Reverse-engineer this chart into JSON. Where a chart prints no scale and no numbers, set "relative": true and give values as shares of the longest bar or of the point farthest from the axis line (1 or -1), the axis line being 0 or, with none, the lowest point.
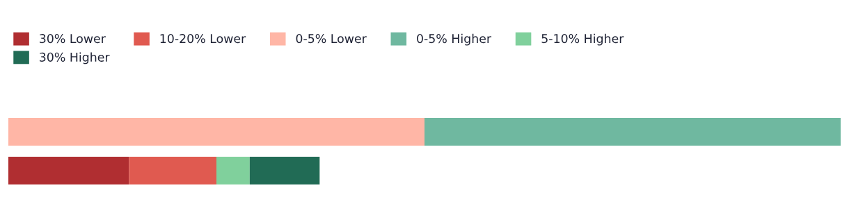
{
  "chart_data": {
    "type": "bar",
    "orientation": "horizontal",
    "stacked": true,
    "relative": true,
    "legend": "top left",
    "categories": [
      null,
      null
    ],
    "series": [
      {
        "name": "30% Lower",
        "color": "#b02e31",
        "values": [
          null,
          0.145
        ]
      },
      {
        "name": "10-20% Lower",
        "color": "#e05a50",
        "values": [
          null,
          0.105
        ]
      },
      {
        "name": "0-5% Lower",
        "color": "#ffb6a6",
        "values": [
          0.5,
          null
        ]
      },
      {
        "name": "0-5% Higher",
        "color": "#6fb8a0",
        "values": [
          0.5,
          null
        ]
      },
      {
        "name": "5-10% Higher",
        "color": "#80d09c",
        "values": [
          null,
          0.04
        ]
      },
      {
        "name": "30% Higher",
        "color": "#216b55",
        "values": [
          null,
          0.084
        ]
      }
    ]
  }
}
